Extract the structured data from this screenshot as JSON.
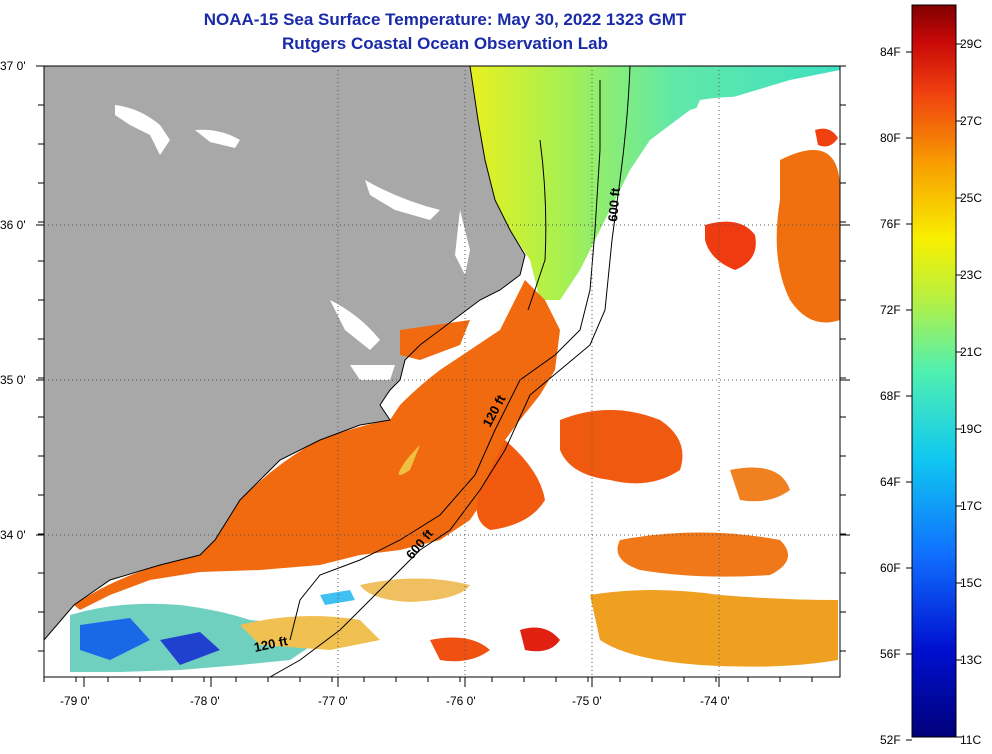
{
  "title": {
    "line1": "NOAA-15 Sea Surface Temperature:  May 30, 2022 1323 GMT",
    "line2": "Rutgers Coastal Ocean Observation Lab"
  },
  "latitude_labels": [
    "37 0'",
    "36 0'",
    "35 0'",
    "34 0'"
  ],
  "longitude_labels": [
    "-79 0'",
    "-78 0'",
    "-77 0'",
    "-76 0'",
    "-75 0'",
    "-74 0'"
  ],
  "contours": {
    "label_600_north": "600 ft",
    "label_120_mid": "120 ft",
    "label_600_south": "600 ft",
    "label_120_south": "120 ft"
  },
  "colorbar": {
    "fahrenheit": [
      "84F",
      "80F",
      "76F",
      "72F",
      "68F",
      "64F",
      "60F",
      "56F",
      "52F"
    ],
    "celsius": [
      "29C",
      "27C",
      "25C",
      "23C",
      "21C",
      "19C",
      "17C",
      "15C",
      "13C",
      "11C"
    ],
    "range_c": [
      11,
      30
    ]
  },
  "colors": {
    "land": "#a8a8a8",
    "title": "#1a2aa8",
    "warm": "#f26a10",
    "cool": "#6ee8a0"
  }
}
